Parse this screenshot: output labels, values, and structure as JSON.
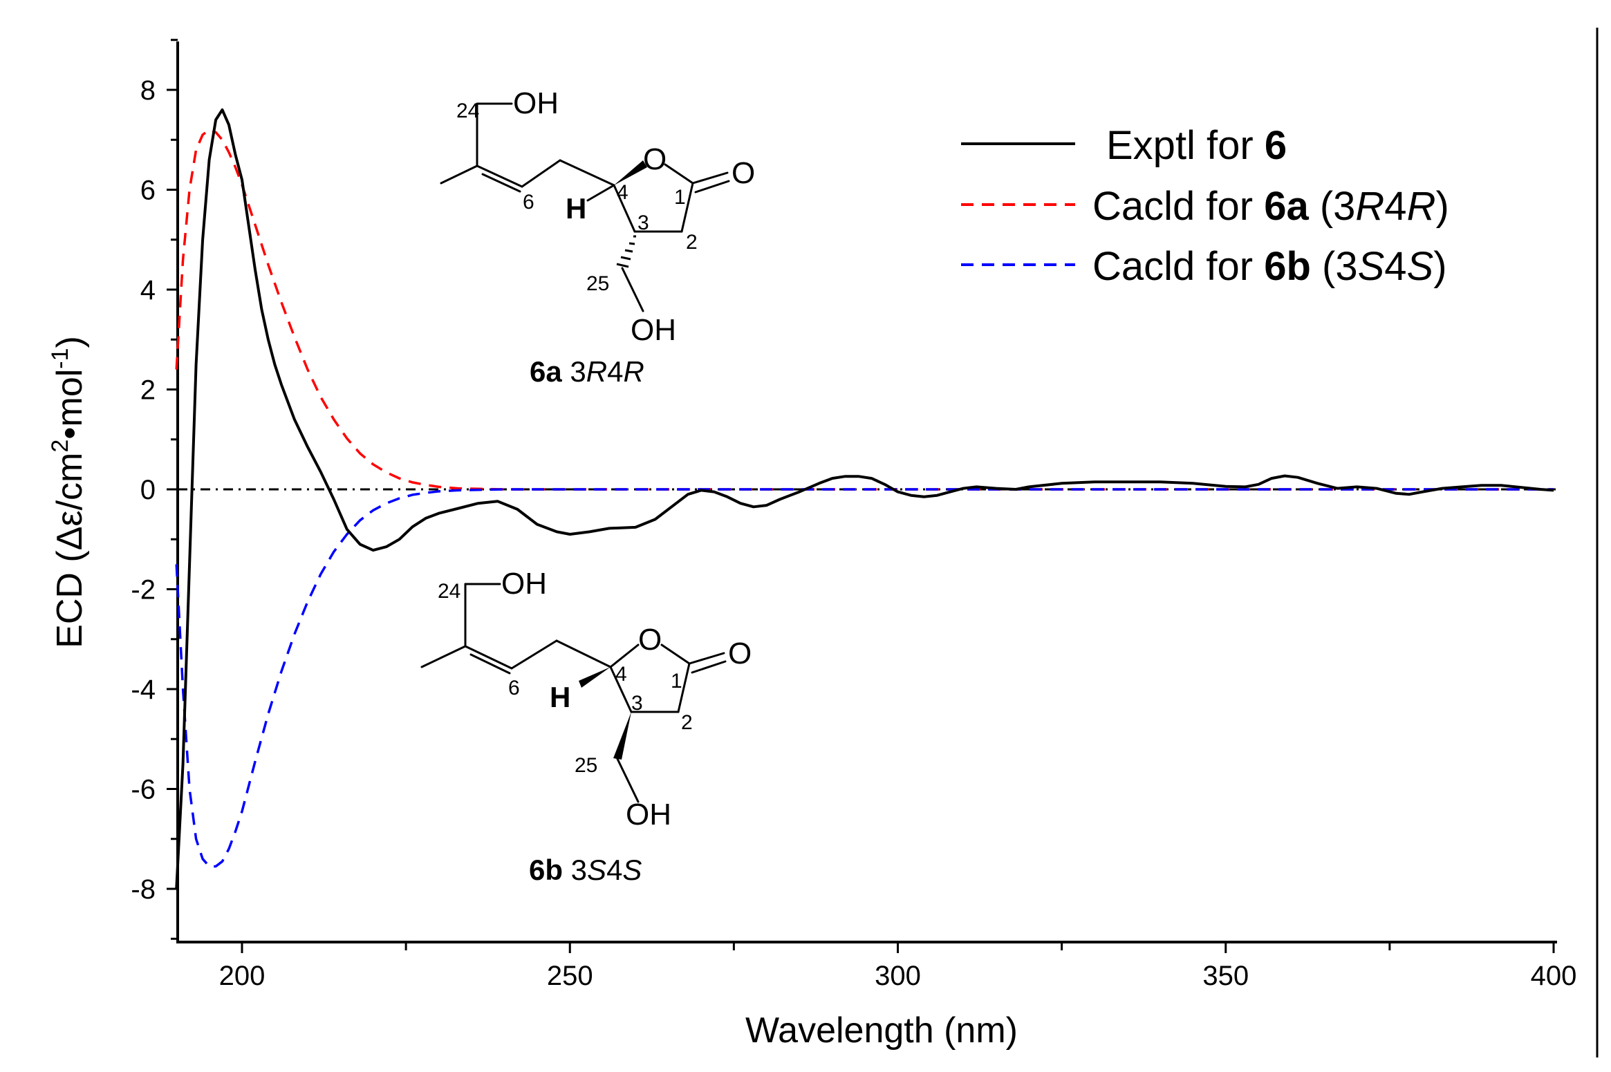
{
  "chart_data": {
    "type": "line",
    "xlabel": "Wavelength (nm)",
    "ylabel_parts": {
      "a": "ECD (Δε/cm",
      "sup1": "2",
      "b": "•mol",
      "sup2": "-1",
      "c": ")"
    },
    "xlim": [
      190,
      400
    ],
    "ylim": [
      -9,
      9
    ],
    "x_ticks": [
      200,
      250,
      300,
      350,
      400
    ],
    "y_ticks": [
      8,
      6,
      4,
      2,
      0,
      -2,
      -4,
      -6,
      -8
    ],
    "grid": false,
    "legend_position": "top-right",
    "legend": [
      {
        "prefix": "Exptl for ",
        "bold": "6",
        "suffix": "",
        "color": "#000000",
        "dash": "none"
      },
      {
        "prefix": "Cacld for ",
        "bold": "6a",
        "suffix": " (3",
        "it1": "R",
        "mid": "4",
        "it2": "R",
        "end": ")",
        "color": "#ff0000",
        "dash": "18,12"
      },
      {
        "prefix": "Cacld for ",
        "bold": "6b",
        "suffix": " (3",
        "it1": "S",
        "mid": "4",
        "it2": "S",
        "end": ")",
        "color": "#0000ff",
        "dash": "18,12"
      }
    ],
    "series": [
      {
        "name": "Exptl for 6",
        "color": "#000000",
        "x": [
          190,
          191,
          192,
          193,
          194,
          195,
          196,
          197,
          198,
          199,
          200,
          201,
          202,
          203,
          204,
          205,
          206,
          208,
          210,
          212,
          214,
          216,
          218,
          220,
          222,
          224,
          226,
          228,
          230,
          233,
          236,
          239,
          242,
          245,
          248,
          250,
          253,
          256,
          260,
          263,
          266,
          268,
          270,
          272,
          274,
          276,
          278,
          280,
          282,
          285,
          288,
          290,
          292,
          294,
          296,
          298,
          300,
          302,
          304,
          306,
          308,
          310,
          312,
          315,
          318,
          320,
          325,
          330,
          335,
          340,
          345,
          350,
          353,
          355,
          357,
          359,
          361,
          364,
          367,
          370,
          373,
          376,
          378,
          380,
          383,
          386,
          389,
          392,
          395,
          398,
          400
        ],
        "values": [
          -8.0,
          -5.5,
          -1.5,
          2.5,
          5.0,
          6.6,
          7.4,
          7.6,
          7.3,
          6.7,
          6.2,
          5.3,
          4.4,
          3.6,
          3.0,
          2.5,
          2.1,
          1.4,
          0.85,
          0.35,
          -0.2,
          -0.8,
          -1.1,
          -1.22,
          -1.15,
          -1.0,
          -0.75,
          -0.58,
          -0.48,
          -0.38,
          -0.28,
          -0.24,
          -0.4,
          -0.7,
          -0.85,
          -0.9,
          -0.85,
          -0.78,
          -0.76,
          -0.6,
          -0.3,
          -0.1,
          -0.02,
          -0.05,
          -0.15,
          -0.28,
          -0.35,
          -0.32,
          -0.2,
          -0.05,
          0.12,
          0.22,
          0.26,
          0.26,
          0.22,
          0.1,
          -0.05,
          -0.12,
          -0.15,
          -0.12,
          -0.05,
          0.02,
          0.05,
          0.02,
          0.0,
          0.05,
          0.12,
          0.15,
          0.15,
          0.15,
          0.12,
          0.06,
          0.05,
          0.1,
          0.22,
          0.27,
          0.24,
          0.12,
          0.02,
          0.05,
          0.02,
          -0.08,
          -0.1,
          -0.05,
          0.02,
          0.05,
          0.08,
          0.08,
          0.04,
          0.0,
          -0.02
        ]
      },
      {
        "name": "Cacld for 6a (3R4R)",
        "color": "#ff0000",
        "x": [
          190,
          191,
          192,
          193,
          194,
          195,
          196,
          197,
          198,
          199,
          200,
          201,
          202,
          204,
          206,
          208,
          210,
          212,
          214,
          216,
          218,
          220,
          222,
          224,
          226,
          228,
          230,
          233,
          236,
          240,
          245,
          250,
          260,
          300,
          350,
          400
        ],
        "values": [
          2.4,
          4.6,
          6.0,
          6.8,
          7.1,
          7.2,
          7.15,
          7.0,
          6.75,
          6.45,
          6.1,
          5.7,
          5.3,
          4.5,
          3.75,
          3.05,
          2.4,
          1.85,
          1.4,
          1.02,
          0.72,
          0.5,
          0.34,
          0.22,
          0.14,
          0.09,
          0.05,
          0.02,
          0.01,
          0.0,
          0.0,
          0.0,
          0.0,
          0.0,
          0.0,
          0.0
        ]
      },
      {
        "name": "Cacld for 6b (3S4S)",
        "color": "#0000ff",
        "x": [
          190,
          191,
          192,
          193,
          194,
          195,
          196,
          197,
          198,
          199,
          200,
          201,
          202,
          204,
          206,
          208,
          210,
          212,
          214,
          216,
          218,
          220,
          222,
          224,
          226,
          228,
          230,
          233,
          236,
          240,
          245,
          250,
          260,
          300,
          350,
          400
        ],
        "values": [
          -1.5,
          -4.0,
          -6.0,
          -7.0,
          -7.4,
          -7.55,
          -7.55,
          -7.45,
          -7.2,
          -6.85,
          -6.45,
          -5.95,
          -5.45,
          -4.5,
          -3.65,
          -2.9,
          -2.25,
          -1.7,
          -1.25,
          -0.9,
          -0.62,
          -0.42,
          -0.28,
          -0.18,
          -0.11,
          -0.07,
          -0.04,
          -0.02,
          -0.01,
          0.0,
          0.0,
          0.0,
          0.0,
          0.0,
          0.0,
          0.0
        ]
      }
    ],
    "zero_line": {
      "y": 0,
      "color": "#000000",
      "dash": "14,8,3,8"
    }
  },
  "molecules": {
    "a": {
      "labels": {
        "oh_top": "OH",
        "n24": "24",
        "n6": "6",
        "n4": "4",
        "n3": "3",
        "n2": "2",
        "n1": "1",
        "o_ring": "O",
        "o_carbonyl": "O",
        "h": "H",
        "n25": "25",
        "oh_bottom": "OH"
      },
      "caption_bold": "6a",
      "caption_num1": " 3",
      "caption_it1": "R",
      "caption_num2": "4",
      "caption_it2": "R"
    },
    "b": {
      "labels": {
        "oh_top": "OH",
        "n24": "24",
        "n6": "6",
        "n4": "4",
        "n3": "3",
        "n2": "2",
        "n1": "1",
        "o_ring": "O",
        "o_carbonyl": "O",
        "h": "H",
        "n25": "25",
        "oh_bottom": "OH"
      },
      "caption_bold": "6b",
      "caption_num1": " 3",
      "caption_it1": "S",
      "caption_num2": "4",
      "caption_it2": "S"
    }
  }
}
